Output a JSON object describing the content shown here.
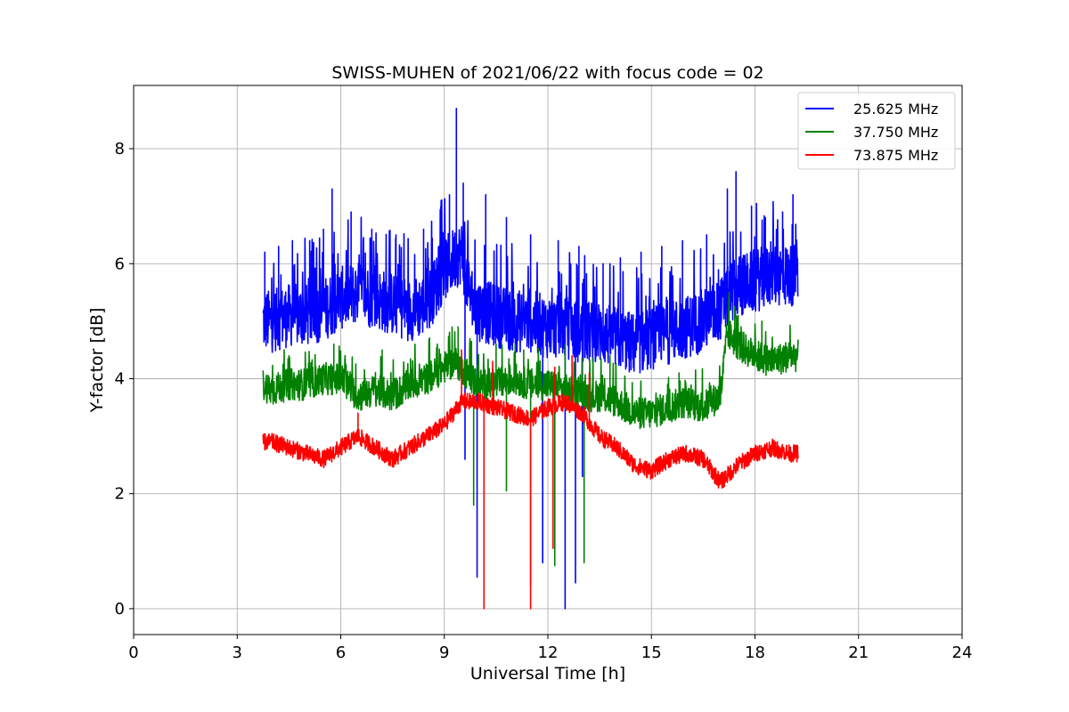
{
  "chart_data": {
    "type": "line",
    "title": "SWISS-MUHEN of 2021/06/22 with focus code = 02",
    "xlabel": "Universal Time [h]",
    "ylabel": "Y-factor [dB]",
    "xlim": [
      0,
      24
    ],
    "ylim": [
      -0.45,
      9.1
    ],
    "x_ticks": [
      0,
      3,
      6,
      9,
      12,
      15,
      18,
      21,
      24
    ],
    "y_ticks": [
      0,
      2,
      4,
      6,
      8
    ],
    "grid": true,
    "legend_position": "top-right",
    "series": [
      {
        "name": "25.625 MHz",
        "color": "#0000ff",
        "x": [
          3.75,
          4.0,
          4.5,
          5.0,
          5.5,
          6.0,
          6.5,
          7.0,
          7.5,
          8.0,
          8.5,
          9.0,
          9.3,
          9.5,
          9.8,
          10.0,
          10.5,
          11.0,
          11.5,
          12.0,
          12.5,
          13.0,
          13.5,
          14.0,
          14.5,
          15.0,
          15.5,
          16.0,
          16.5,
          17.0,
          17.3,
          17.5,
          18.0,
          18.5,
          19.0,
          19.25
        ],
        "values": [
          5.0,
          5.0,
          5.1,
          5.1,
          5.2,
          5.4,
          5.5,
          5.4,
          5.3,
          5.2,
          5.3,
          5.9,
          6.1,
          6.2,
          5.3,
          5.2,
          5.1,
          5.0,
          5.0,
          4.9,
          4.9,
          4.8,
          4.8,
          4.7,
          4.6,
          4.7,
          4.8,
          4.9,
          5.0,
          5.2,
          5.5,
          5.6,
          5.7,
          5.8,
          5.8,
          5.8
        ],
        "peak_x": [
          3.8,
          4.2,
          4.6,
          5.1,
          5.5,
          5.75,
          6.3,
          6.9,
          7.6,
          8.4,
          8.9,
          9.15,
          9.35,
          9.55,
          10.2,
          10.8,
          11.5,
          12.3,
          12.9,
          13.6,
          14.1,
          14.7,
          15.3,
          15.9,
          16.6,
          17.2,
          17.45,
          17.9,
          18.3,
          18.8,
          19.1
        ],
        "peak_values": [
          6.2,
          6.3,
          6.4,
          6.4,
          6.6,
          7.3,
          6.9,
          6.6,
          6.5,
          6.6,
          7.0,
          7.2,
          8.7,
          7.4,
          7.2,
          6.8,
          6.5,
          6.4,
          6.3,
          6.0,
          6.1,
          6.2,
          6.3,
          6.4,
          6.5,
          7.3,
          7.6,
          7.0,
          6.8,
          6.9,
          7.2
        ],
        "dip_x": [
          9.6,
          9.95,
          11.85,
          12.5,
          12.8,
          13.0
        ],
        "dip_values": [
          2.6,
          0.55,
          0.8,
          0.0,
          0.45,
          2.3
        ]
      },
      {
        "name": "37.750 MHz",
        "color": "#008000",
        "x": [
          3.75,
          4.0,
          4.5,
          5.0,
          5.5,
          6.0,
          6.5,
          7.0,
          7.5,
          8.0,
          8.5,
          9.0,
          9.3,
          9.5,
          9.8,
          10.0,
          10.5,
          11.0,
          11.5,
          12.0,
          12.5,
          13.0,
          13.5,
          14.0,
          14.5,
          15.0,
          15.5,
          16.0,
          16.5,
          17.0,
          17.2,
          17.5,
          18.0,
          18.5,
          19.0,
          19.25
        ],
        "values": [
          3.9,
          3.8,
          3.9,
          3.9,
          4.0,
          4.0,
          3.7,
          3.8,
          3.7,
          3.9,
          4.0,
          4.2,
          4.3,
          4.2,
          4.0,
          3.9,
          3.9,
          4.0,
          3.9,
          3.9,
          3.8,
          3.7,
          3.7,
          3.6,
          3.4,
          3.4,
          3.5,
          3.6,
          3.5,
          3.7,
          4.8,
          4.6,
          4.4,
          4.3,
          4.4,
          4.4
        ],
        "peak_x": [
          4.5,
          5.8,
          7.2,
          8.8,
          9.4,
          10.5,
          11.3,
          12.5,
          13.8,
          15.8,
          17.25,
          18.2
        ],
        "peak_values": [
          4.4,
          4.6,
          4.5,
          4.6,
          4.9,
          4.6,
          4.5,
          4.6,
          4.4,
          4.1,
          5.5,
          5.0
        ],
        "dip_x": [
          9.85,
          10.8,
          11.5,
          12.2,
          13.05
        ],
        "dip_values": [
          1.8,
          2.05,
          0.4,
          0.75,
          0.8
        ]
      },
      {
        "name": "73.875 MHz",
        "color": "#ff0000",
        "x": [
          3.75,
          4.0,
          4.5,
          5.0,
          5.5,
          6.0,
          6.5,
          7.0,
          7.5,
          8.0,
          8.5,
          9.0,
          9.5,
          10.0,
          10.5,
          11.0,
          11.5,
          12.0,
          12.5,
          13.0,
          13.5,
          14.0,
          14.5,
          15.0,
          15.5,
          16.0,
          16.5,
          17.0,
          17.5,
          18.0,
          18.5,
          19.0,
          19.25
        ],
        "values": [
          2.9,
          2.9,
          2.8,
          2.7,
          2.6,
          2.8,
          3.0,
          2.8,
          2.6,
          2.8,
          3.0,
          3.2,
          3.6,
          3.6,
          3.5,
          3.4,
          3.3,
          3.5,
          3.6,
          3.4,
          3.0,
          2.8,
          2.5,
          2.4,
          2.6,
          2.7,
          2.6,
          2.2,
          2.5,
          2.7,
          2.8,
          2.7,
          2.7
        ],
        "peak_x": [
          6.5,
          9.5,
          10.4,
          12.2,
          12.7,
          13.2
        ],
        "peak_values": [
          3.4,
          4.5,
          4.3,
          4.2,
          4.4,
          4.1
        ],
        "dip_x": [
          10.15,
          11.5,
          12.15
        ],
        "dip_values": [
          0.0,
          0.0,
          1.05
        ]
      }
    ]
  }
}
